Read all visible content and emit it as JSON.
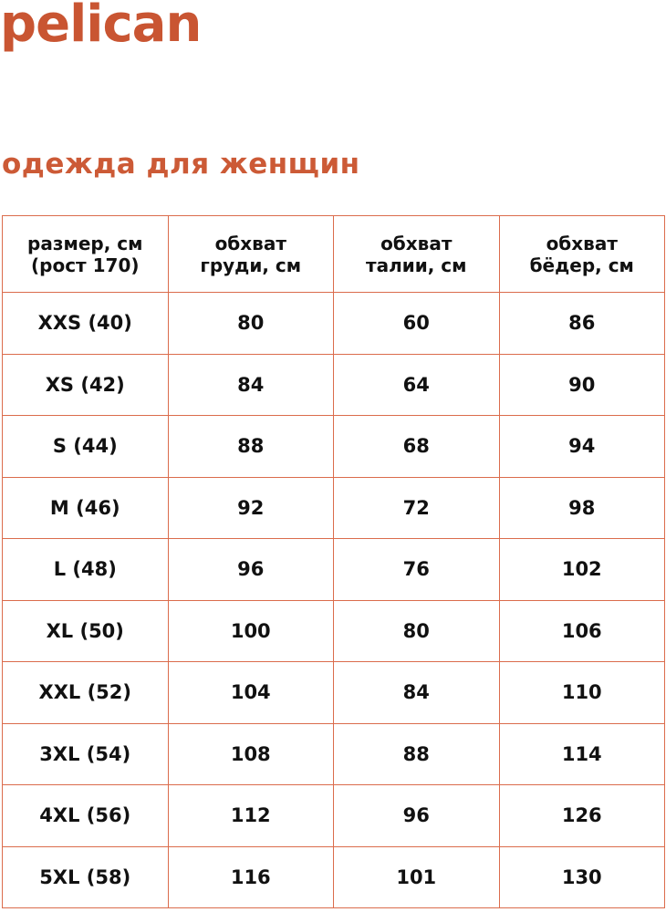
{
  "brand": {
    "logo": "pelican",
    "color": "#c95532"
  },
  "title": "одежда для женщин",
  "table": {
    "headers": [
      [
        "размер, см",
        "(рост 170)"
      ],
      [
        "обхват",
        "груди, см"
      ],
      [
        "обхват",
        "талии, см"
      ],
      [
        "обхват",
        "бёдер, см"
      ]
    ],
    "rows": [
      [
        "XXS (40)",
        "80",
        "60",
        "86"
      ],
      [
        "XS (42)",
        "84",
        "64",
        "90"
      ],
      [
        "S (44)",
        "88",
        "68",
        "94"
      ],
      [
        "M (46)",
        "92",
        "72",
        "98"
      ],
      [
        "L (48)",
        "96",
        "76",
        "102"
      ],
      [
        "XL (50)",
        "100",
        "80",
        "106"
      ],
      [
        "XXL (52)",
        "104",
        "84",
        "110"
      ],
      [
        "3XL (54)",
        "108",
        "88",
        "114"
      ],
      [
        "4XL (56)",
        "112",
        "96",
        "126"
      ],
      [
        "5XL (58)",
        "116",
        "101",
        "130"
      ]
    ]
  }
}
